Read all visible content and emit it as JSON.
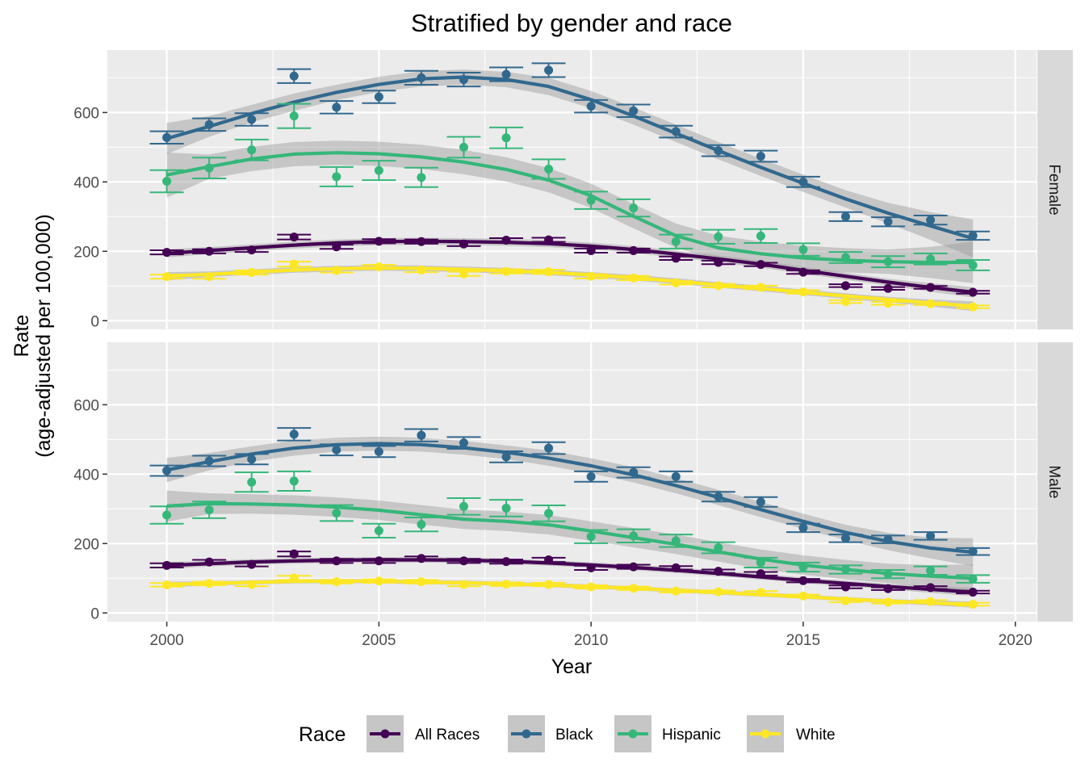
{
  "chart_data": {
    "type": "line",
    "title": "Stratified by gender and race",
    "xlabel": "Year",
    "ylabel_line1": "Rate",
    "ylabel_line2": "(age-adjusted per 100,000)",
    "xlim": [
      1998.6,
      2020.5
    ],
    "ylim": [
      -25,
      780
    ],
    "x_ticks": [
      2000,
      2005,
      2010,
      2015,
      2020
    ],
    "y_ticks": [
      0,
      200,
      400,
      600
    ],
    "grid": true,
    "legend": {
      "title": "Race",
      "position": "bottom",
      "entries": [
        "All Races",
        "Black",
        "Hispanic",
        "White"
      ]
    },
    "colors": {
      "All Races": "#440154",
      "Black": "#31688E",
      "Hispanic": "#35B779",
      "White": "#FDE725"
    },
    "years": [
      2000,
      2001,
      2002,
      2003,
      2004,
      2005,
      2006,
      2007,
      2008,
      2009,
      2010,
      2011,
      2012,
      2013,
      2014,
      2015,
      2016,
      2017,
      2018,
      2019
    ],
    "panels": [
      {
        "name": "Female",
        "series": [
          {
            "name": "All Races",
            "values": [
              197,
              200,
              204,
              241,
              213,
              229,
              228,
              221,
              232,
              233,
              202,
              202,
              180,
              168,
              162,
              140,
              101,
              93,
              96,
              82
            ],
            "ci_halfwidth": [
              6,
              6,
              6,
              7,
              6,
              6,
              6,
              6,
              6,
              6,
              6,
              6,
              5,
              5,
              5,
              5,
              4,
              4,
              4,
              4
            ],
            "smooth": [
              194,
              202,
              210,
              218,
              224,
              228,
              229,
              228,
              226,
              222,
              215,
              205,
              192,
              178,
              163,
              145,
              128,
              111,
              96,
              82
            ],
            "band": [
              12,
              10,
              10,
              10,
              10,
              10,
              10,
              10,
              10,
              10,
              10,
              10,
              10,
              10,
              10,
              10,
              10,
              10,
              12,
              15
            ]
          },
          {
            "name": "Black",
            "values": [
              528,
              565,
              580,
              705,
              615,
              645,
              700,
              695,
              710,
              722,
              618,
              605,
              545,
              490,
              474,
              400,
              300,
              285,
              290,
              245
            ],
            "ci_halfwidth": [
              18,
              18,
              18,
              20,
              18,
              18,
              20,
              20,
              20,
              20,
              18,
              18,
              17,
              16,
              16,
              15,
              13,
              13,
              13,
              12
            ],
            "smooth": [
              525,
              560,
              597,
              630,
              658,
              681,
              697,
              702,
              695,
              675,
              637,
              590,
              540,
              490,
              442,
              396,
              351,
              310,
              273,
              237
            ],
            "band": [
              45,
              30,
              25,
              25,
              22,
              22,
              22,
              22,
              22,
              25,
              25,
              25,
              25,
              25,
              25,
              25,
              25,
              30,
              40,
              55
            ]
          },
          {
            "name": "Hispanic",
            "values": [
              402,
              440,
              492,
              590,
              415,
              433,
              413,
              500,
              527,
              437,
              347,
              325,
              228,
              242,
              244,
              205,
              182,
              170,
              178,
              160
            ],
            "ci_halfwidth": [
              32,
              30,
              30,
              35,
              28,
              28,
              28,
              30,
              30,
              28,
              25,
              25,
              20,
              20,
              20,
              18,
              16,
              16,
              16,
              15
            ],
            "smooth": [
              420,
              444,
              466,
              480,
              484,
              481,
              472,
              457,
              436,
              405,
              360,
              301,
              245,
              210,
              193,
              181,
              174,
              170,
              168,
              168
            ],
            "band": [
              65,
              35,
              35,
              35,
              35,
              35,
              35,
              35,
              35,
              35,
              35,
              35,
              35,
              35,
              35,
              35,
              35,
              35,
              45,
              60
            ]
          },
          {
            "name": "White",
            "values": [
              127,
              127,
              139,
              163,
              145,
              155,
              146,
              135,
              142,
              141,
              128,
              123,
              109,
              101,
              96,
              83,
              55,
              50,
              49,
              40
            ],
            "ci_halfwidth": [
              6,
              6,
              6,
              7,
              6,
              6,
              6,
              6,
              6,
              6,
              6,
              6,
              5,
              5,
              5,
              5,
              4,
              4,
              4,
              4
            ],
            "smooth": [
              128,
              134,
              140,
              146,
              150,
              152,
              151,
              148,
              144,
              139,
              132,
              124,
              114,
              103,
              93,
              82,
              71,
              61,
              51,
              42
            ],
            "band": [
              12,
              8,
              8,
              8,
              8,
              8,
              8,
              8,
              8,
              8,
              8,
              8,
              8,
              8,
              8,
              8,
              8,
              8,
              10,
              14
            ]
          }
        ]
      },
      {
        "name": "Male",
        "series": [
          {
            "name": "All Races",
            "values": [
              137,
              147,
              140,
              170,
              150,
              150,
              157,
              150,
              148,
              153,
              130,
              133,
              130,
              120,
              113,
              93,
              75,
              70,
              73,
              60
            ],
            "ci_halfwidth": [
              6,
              6,
              6,
              7,
              6,
              6,
              6,
              6,
              6,
              6,
              6,
              6,
              5,
              5,
              5,
              5,
              4,
              4,
              4,
              4
            ],
            "smooth": [
              137,
              142,
              147,
              150,
              152,
              153,
              153,
              152,
              149,
              144,
              138,
              131,
              123,
              114,
              104,
              94,
              85,
              76,
              68,
              60
            ],
            "band": [
              10,
              8,
              8,
              8,
              8,
              8,
              8,
              8,
              8,
              8,
              8,
              8,
              8,
              8,
              8,
              8,
              8,
              8,
              10,
              12
            ]
          },
          {
            "name": "Black",
            "values": [
              410,
              438,
              443,
              515,
              470,
              465,
              512,
              490,
              450,
              475,
              393,
              405,
              393,
              335,
              320,
              245,
              215,
              212,
              222,
              177
            ],
            "ci_halfwidth": [
              15,
              15,
              15,
              18,
              16,
              16,
              18,
              17,
              16,
              17,
              15,
              15,
              15,
              14,
              14,
              12,
              11,
              11,
              11,
              10
            ],
            "smooth": [
              412,
              436,
              458,
              475,
              485,
              488,
              485,
              476,
              463,
              446,
              424,
              398,
              367,
              333,
              298,
              264,
              232,
              206,
              187,
              175
            ],
            "band": [
              35,
              25,
              22,
              22,
              20,
              20,
              20,
              20,
              20,
              22,
              22,
              22,
              22,
              22,
              22,
              22,
              22,
              25,
              30,
              40
            ]
          },
          {
            "name": "Hispanic",
            "values": [
              282,
              297,
              377,
              380,
              288,
              237,
              255,
              307,
              302,
              287,
              220,
              222,
              208,
              188,
              145,
              132,
              125,
              112,
              122,
              98
            ],
            "ci_halfwidth": [
              25,
              24,
              28,
              28,
              23,
              20,
              20,
              24,
              24,
              23,
              19,
              19,
              18,
              16,
              14,
              13,
              12,
              12,
              12,
              11
            ],
            "smooth": [
              308,
              315,
              314,
              311,
              305,
              296,
              283,
              270,
              264,
              254,
              236,
              217,
              198,
              176,
              155,
              138,
              125,
              114,
              106,
              100
            ],
            "band": [
              45,
              30,
              28,
              28,
              28,
              28,
              28,
              28,
              28,
              28,
              28,
              28,
              28,
              28,
              28,
              28,
              28,
              28,
              32,
              40
            ]
          },
          {
            "name": "White",
            "values": [
              81,
              85,
              82,
              101,
              90,
              92,
              90,
              82,
              83,
              82,
              75,
              71,
              63,
              61,
              59,
              49,
              35,
              31,
              33,
              25
            ],
            "ci_halfwidth": [
              5,
              5,
              5,
              6,
              5,
              5,
              5,
              5,
              5,
              5,
              5,
              5,
              4,
              4,
              4,
              4,
              4,
              4,
              4,
              4
            ],
            "smooth": [
              82,
              85,
              88,
              91,
              92,
              91,
              89,
              87,
              84,
              80,
              76,
              71,
              65,
              59,
              53,
              47,
              40,
              34,
              29,
              24
            ],
            "band": [
              8,
              6,
              6,
              6,
              6,
              6,
              6,
              6,
              6,
              6,
              6,
              6,
              6,
              6,
              6,
              6,
              6,
              6,
              7,
              9
            ]
          }
        ]
      }
    ]
  }
}
